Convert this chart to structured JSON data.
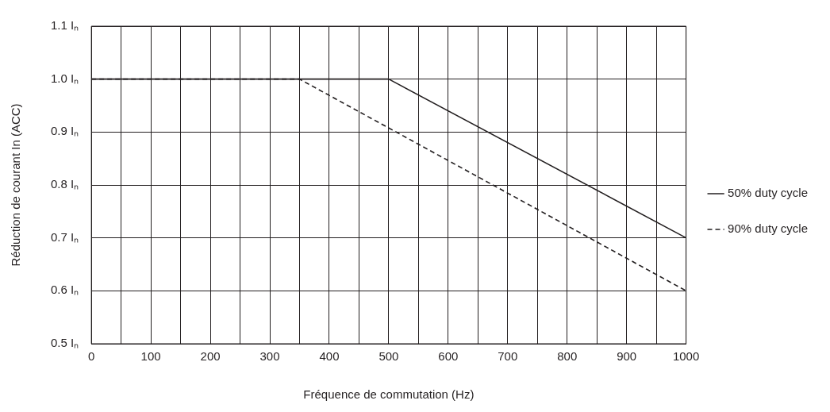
{
  "chart_data": {
    "type": "line",
    "xlabel": "Fréquence de commutation (Hz)",
    "ylabel": "Réduction de courant In (ACC)",
    "xlim": [
      0,
      1000
    ],
    "xticks": [
      0,
      {
        "value": 50,
        "label": null
      },
      100,
      {
        "value": 150,
        "label": null
      },
      200,
      {
        "value": 250,
        "label": null
      },
      300,
      {
        "value": 350,
        "label": null
      },
      400,
      {
        "value": 450,
        "label": null
      },
      500,
      {
        "value": 550,
        "label": null
      },
      600,
      {
        "value": 650,
        "label": null
      },
      700,
      {
        "value": 750,
        "label": null
      },
      800,
      {
        "value": 850,
        "label": null
      },
      900,
      {
        "value": 950,
        "label": null
      },
      1000
    ],
    "ylim": [
      0.5,
      1.1
    ],
    "yticks": [
      {
        "value": 0.5,
        "label": "0.5 Iₙ"
      },
      {
        "value": 0.6,
        "label": "0.6 Iₙ"
      },
      {
        "value": 0.7,
        "label": "0.7 Iₙ"
      },
      {
        "value": 0.8,
        "label": "0.8 Iₙ"
      },
      {
        "value": 0.9,
        "label": "0.9 Iₙ"
      },
      {
        "value": 1.0,
        "label": "1.0 Iₙ"
      },
      {
        "value": 1.1,
        "label": "1.1 Iₙ"
      }
    ],
    "grid": true,
    "legend": "right",
    "marker": "none",
    "series": [
      {
        "name": "50% duty cycle",
        "color": "#231f20",
        "line_style": "solid",
        "x": [
          0,
          500,
          1000
        ],
        "values": [
          1.0,
          1.0,
          0.7
        ]
      },
      {
        "name": "90% duty cycle",
        "color": "#231f20",
        "line_style": "dashed",
        "x": [
          0,
          350,
          1000
        ],
        "values": [
          1.0,
          1.0,
          0.6
        ]
      }
    ]
  }
}
